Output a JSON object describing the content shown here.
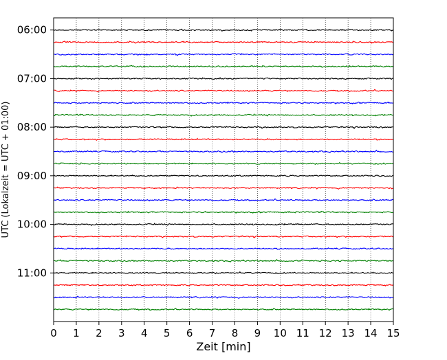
{
  "chart_data": {
    "type": "line",
    "xlabel": "Zeit  [min]",
    "ylabel": "UTC (Lokalzeit = UTC + 01:00)",
    "xlim": [
      0,
      15
    ],
    "x_ticks": [
      "0",
      "1",
      "2",
      "3",
      "4",
      "5",
      "6",
      "7",
      "8",
      "9",
      "10",
      "11",
      "12",
      "13",
      "14",
      "15"
    ],
    "y_ticks": [
      "06:00",
      "07:00",
      "08:00",
      "09:00",
      "10:00",
      "11:00"
    ],
    "y_range": [
      "05:45",
      "12:00"
    ],
    "grid": "vertical dotted lines at each minute",
    "trace_interval_min": 15,
    "trace_colors": [
      "#000000",
      "#ff0000",
      "#0000ff",
      "#008000"
    ],
    "series": [
      {
        "start": "06:00",
        "color": "#000000"
      },
      {
        "start": "06:15",
        "color": "#ff0000"
      },
      {
        "start": "06:30",
        "color": "#0000ff"
      },
      {
        "start": "06:45",
        "color": "#008000"
      },
      {
        "start": "07:00",
        "color": "#000000"
      },
      {
        "start": "07:15",
        "color": "#ff0000"
      },
      {
        "start": "07:30",
        "color": "#0000ff"
      },
      {
        "start": "07:45",
        "color": "#008000"
      },
      {
        "start": "08:00",
        "color": "#000000"
      },
      {
        "start": "08:15",
        "color": "#ff0000"
      },
      {
        "start": "08:30",
        "color": "#0000ff"
      },
      {
        "start": "08:45",
        "color": "#008000"
      },
      {
        "start": "09:00",
        "color": "#000000"
      },
      {
        "start": "09:15",
        "color": "#ff0000"
      },
      {
        "start": "09:30",
        "color": "#0000ff"
      },
      {
        "start": "09:45",
        "color": "#008000"
      },
      {
        "start": "10:00",
        "color": "#000000"
      },
      {
        "start": "10:15",
        "color": "#ff0000"
      },
      {
        "start": "10:30",
        "color": "#0000ff"
      },
      {
        "start": "10:45",
        "color": "#008000"
      },
      {
        "start": "11:00",
        "color": "#000000"
      },
      {
        "start": "11:15",
        "color": "#ff0000"
      },
      {
        "start": "11:30",
        "color": "#0000ff"
      },
      {
        "start": "11:45",
        "color": "#008000"
      }
    ]
  }
}
